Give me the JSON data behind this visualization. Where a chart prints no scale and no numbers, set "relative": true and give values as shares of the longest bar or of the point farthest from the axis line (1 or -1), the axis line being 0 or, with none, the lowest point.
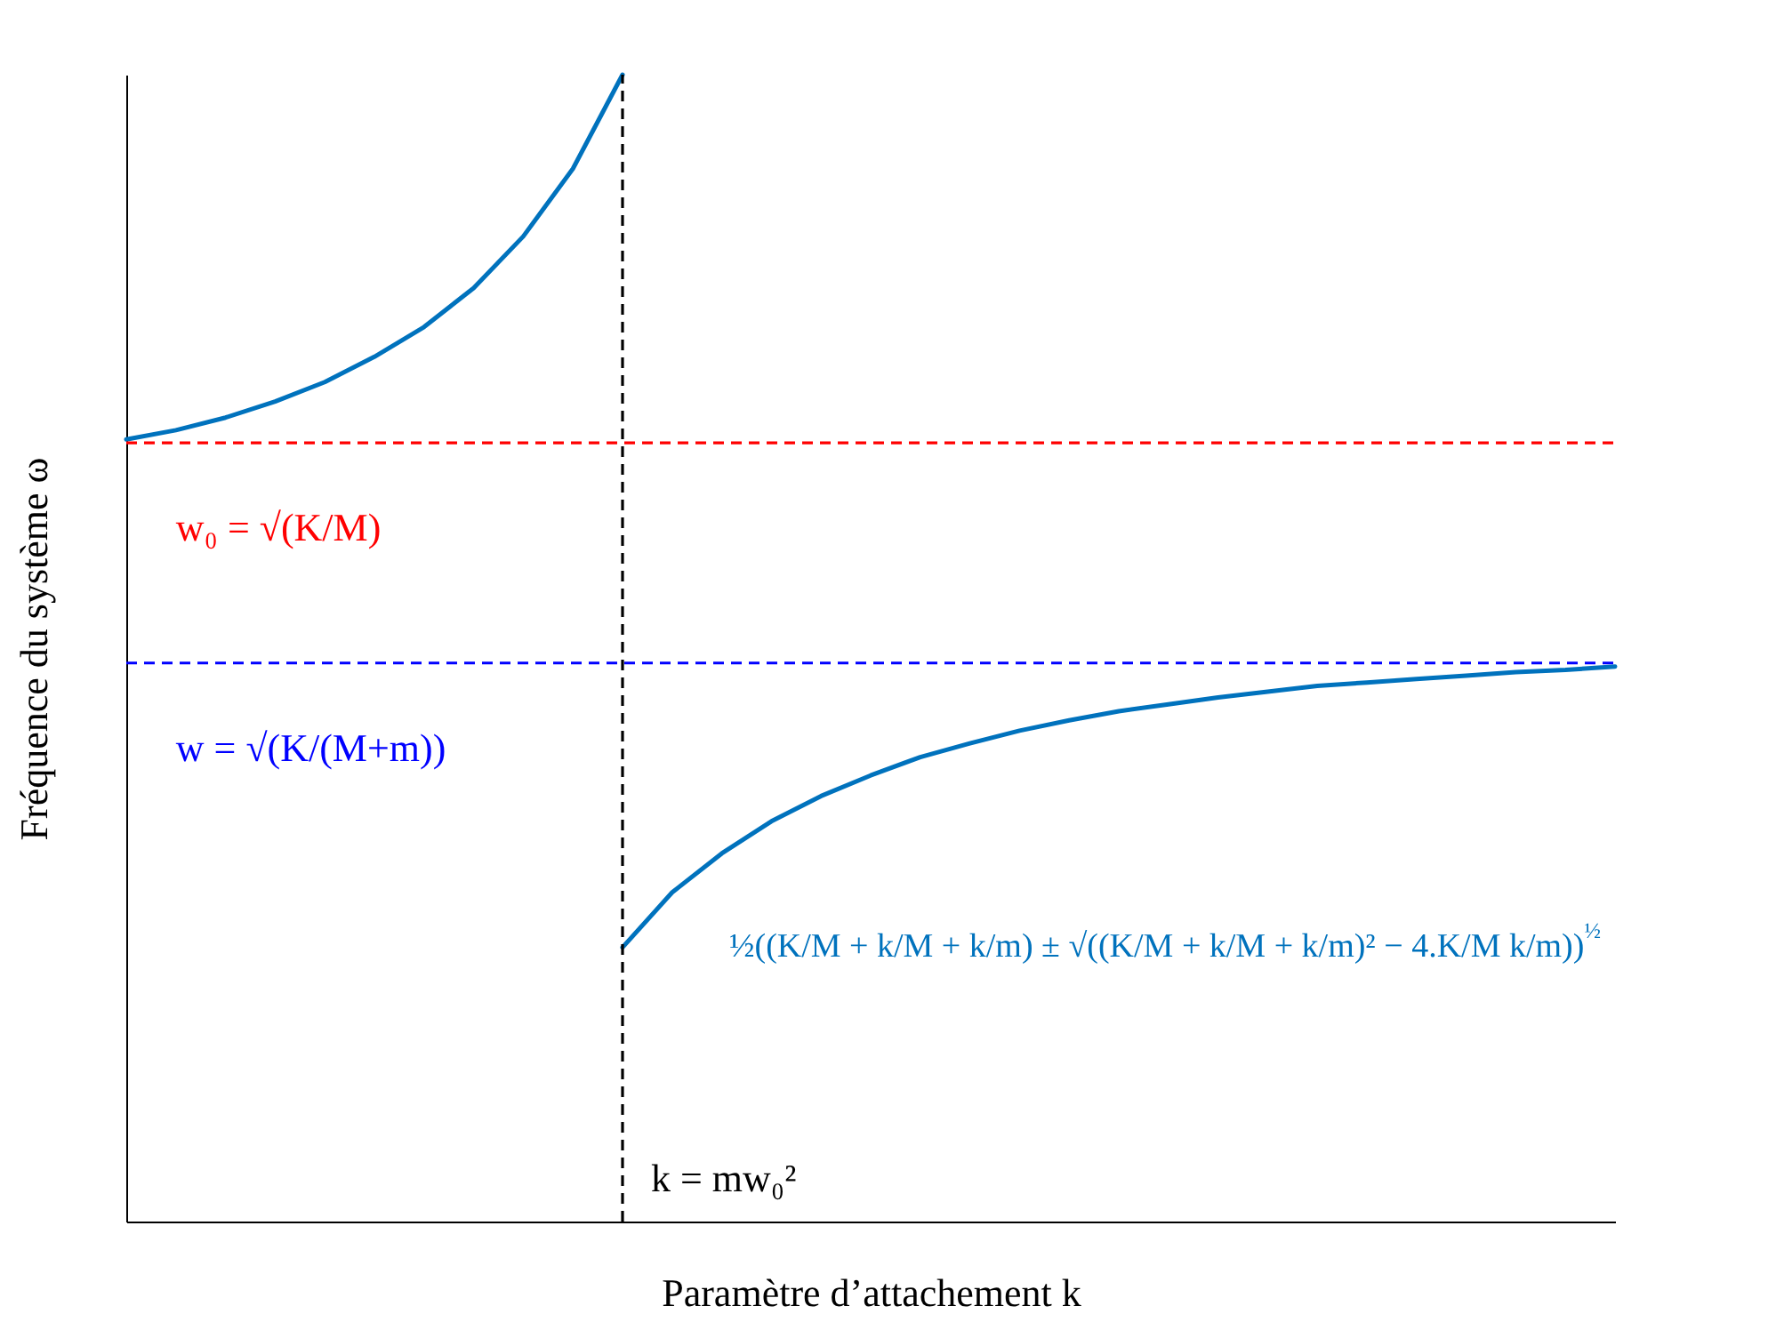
{
  "chart_data": {
    "type": "line",
    "relative": true,
    "xlabel": "Paramètre d’attachement k",
    "ylabel": "Fréquence du système ω",
    "legend": false,
    "marker": "none",
    "line_style": "solid",
    "categories": [
      null,
      null,
      null,
      null,
      null,
      null,
      null,
      null,
      null,
      null,
      null,
      null,
      null,
      null,
      null,
      null,
      null,
      null,
      null,
      null,
      null,
      null,
      null,
      null,
      null,
      null,
      null,
      null,
      null,
      null,
      null
    ],
    "series": [
      {
        "color": "#0072bd",
        "values": [
          0.682,
          0.69,
          0.701,
          0.715,
          0.732,
          0.754,
          0.78,
          0.814,
          0.859,
          0.918,
          1,
          null,
          null,
          null,
          null,
          null,
          null,
          null,
          null,
          null,
          null,
          null,
          null,
          null,
          null,
          null,
          null,
          null,
          null,
          null,
          null
        ]
      },
      {
        "color": "#0072bd",
        "values": [
          null,
          null,
          null,
          null,
          null,
          null,
          null,
          null,
          null,
          null,
          0.239,
          0.287,
          0.321,
          0.349,
          0.371,
          0.389,
          0.405,
          0.417,
          0.428,
          0.437,
          0.445,
          0.451,
          0.457,
          0.462,
          0.467,
          0.47,
          0.473,
          0.476,
          0.479,
          0.481,
          0.484
        ]
      }
    ],
    "ref_lines": [
      {
        "axis": "y",
        "value": 0.679,
        "label": "w₀ = √(K/M)",
        "color": "#ff0000",
        "line_style": "dashed"
      },
      {
        "axis": "y",
        "value": 0.487,
        "label": "w = √(K/(M+m))",
        "color": "#0000ff",
        "line_style": "dashed"
      }
    ],
    "annotations": [
      "k = mw₀²",
      "½((K/M + k/M + k/m) ± √((K/M + k/M + k/m)² − 4.K/M k/m))$^{½}$"
    ]
  }
}
